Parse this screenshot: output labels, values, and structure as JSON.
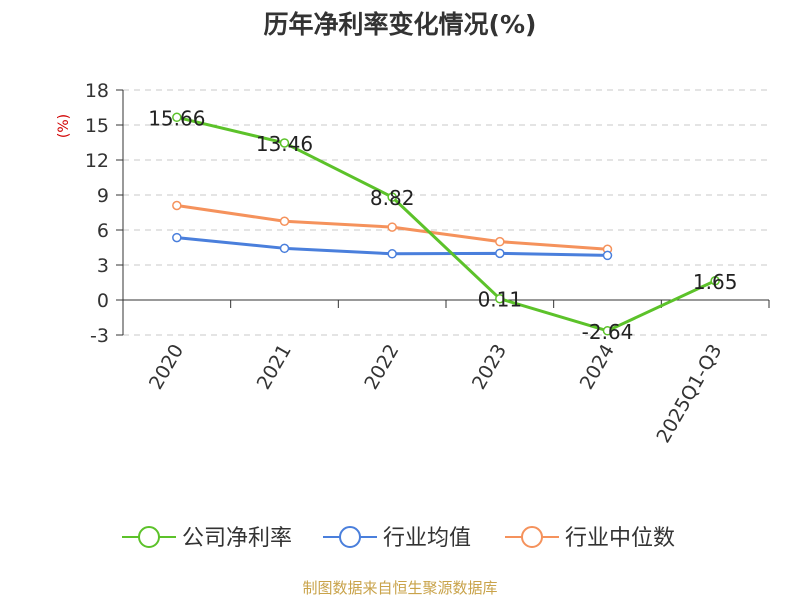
{
  "chart_data": {
    "type": "line",
    "title": "历年净利率变化情况(%)",
    "ylabel": "(%)",
    "categories": [
      "2020",
      "2021",
      "2022",
      "2023",
      "2024",
      "2025Q1-Q3"
    ],
    "ylim": [
      -3,
      18
    ],
    "yticks": [
      "18",
      "15",
      "12",
      "9",
      "6",
      "3",
      "0",
      "-3"
    ],
    "grid": true,
    "legend_position": "bottom",
    "series": [
      {
        "name": "公司净利率",
        "color": "#5cc22a",
        "values": [
          15.66,
          13.46,
          8.82,
          0.11,
          -2.64,
          1.65
        ],
        "labels": [
          "15.66",
          "13.46",
          "8.82",
          "0.11",
          "-2.64",
          "1.65"
        ]
      },
      {
        "name": "行业均值",
        "color": "#4a7fdc",
        "values": [
          5.35,
          4.43,
          3.96,
          4.0,
          3.82,
          null
        ]
      },
      {
        "name": "行业中位数",
        "color": "#f5925c",
        "values": [
          8.1,
          6.75,
          6.25,
          5.0,
          4.35,
          null
        ]
      }
    ]
  },
  "source": "制图数据来自恒生聚源数据库"
}
